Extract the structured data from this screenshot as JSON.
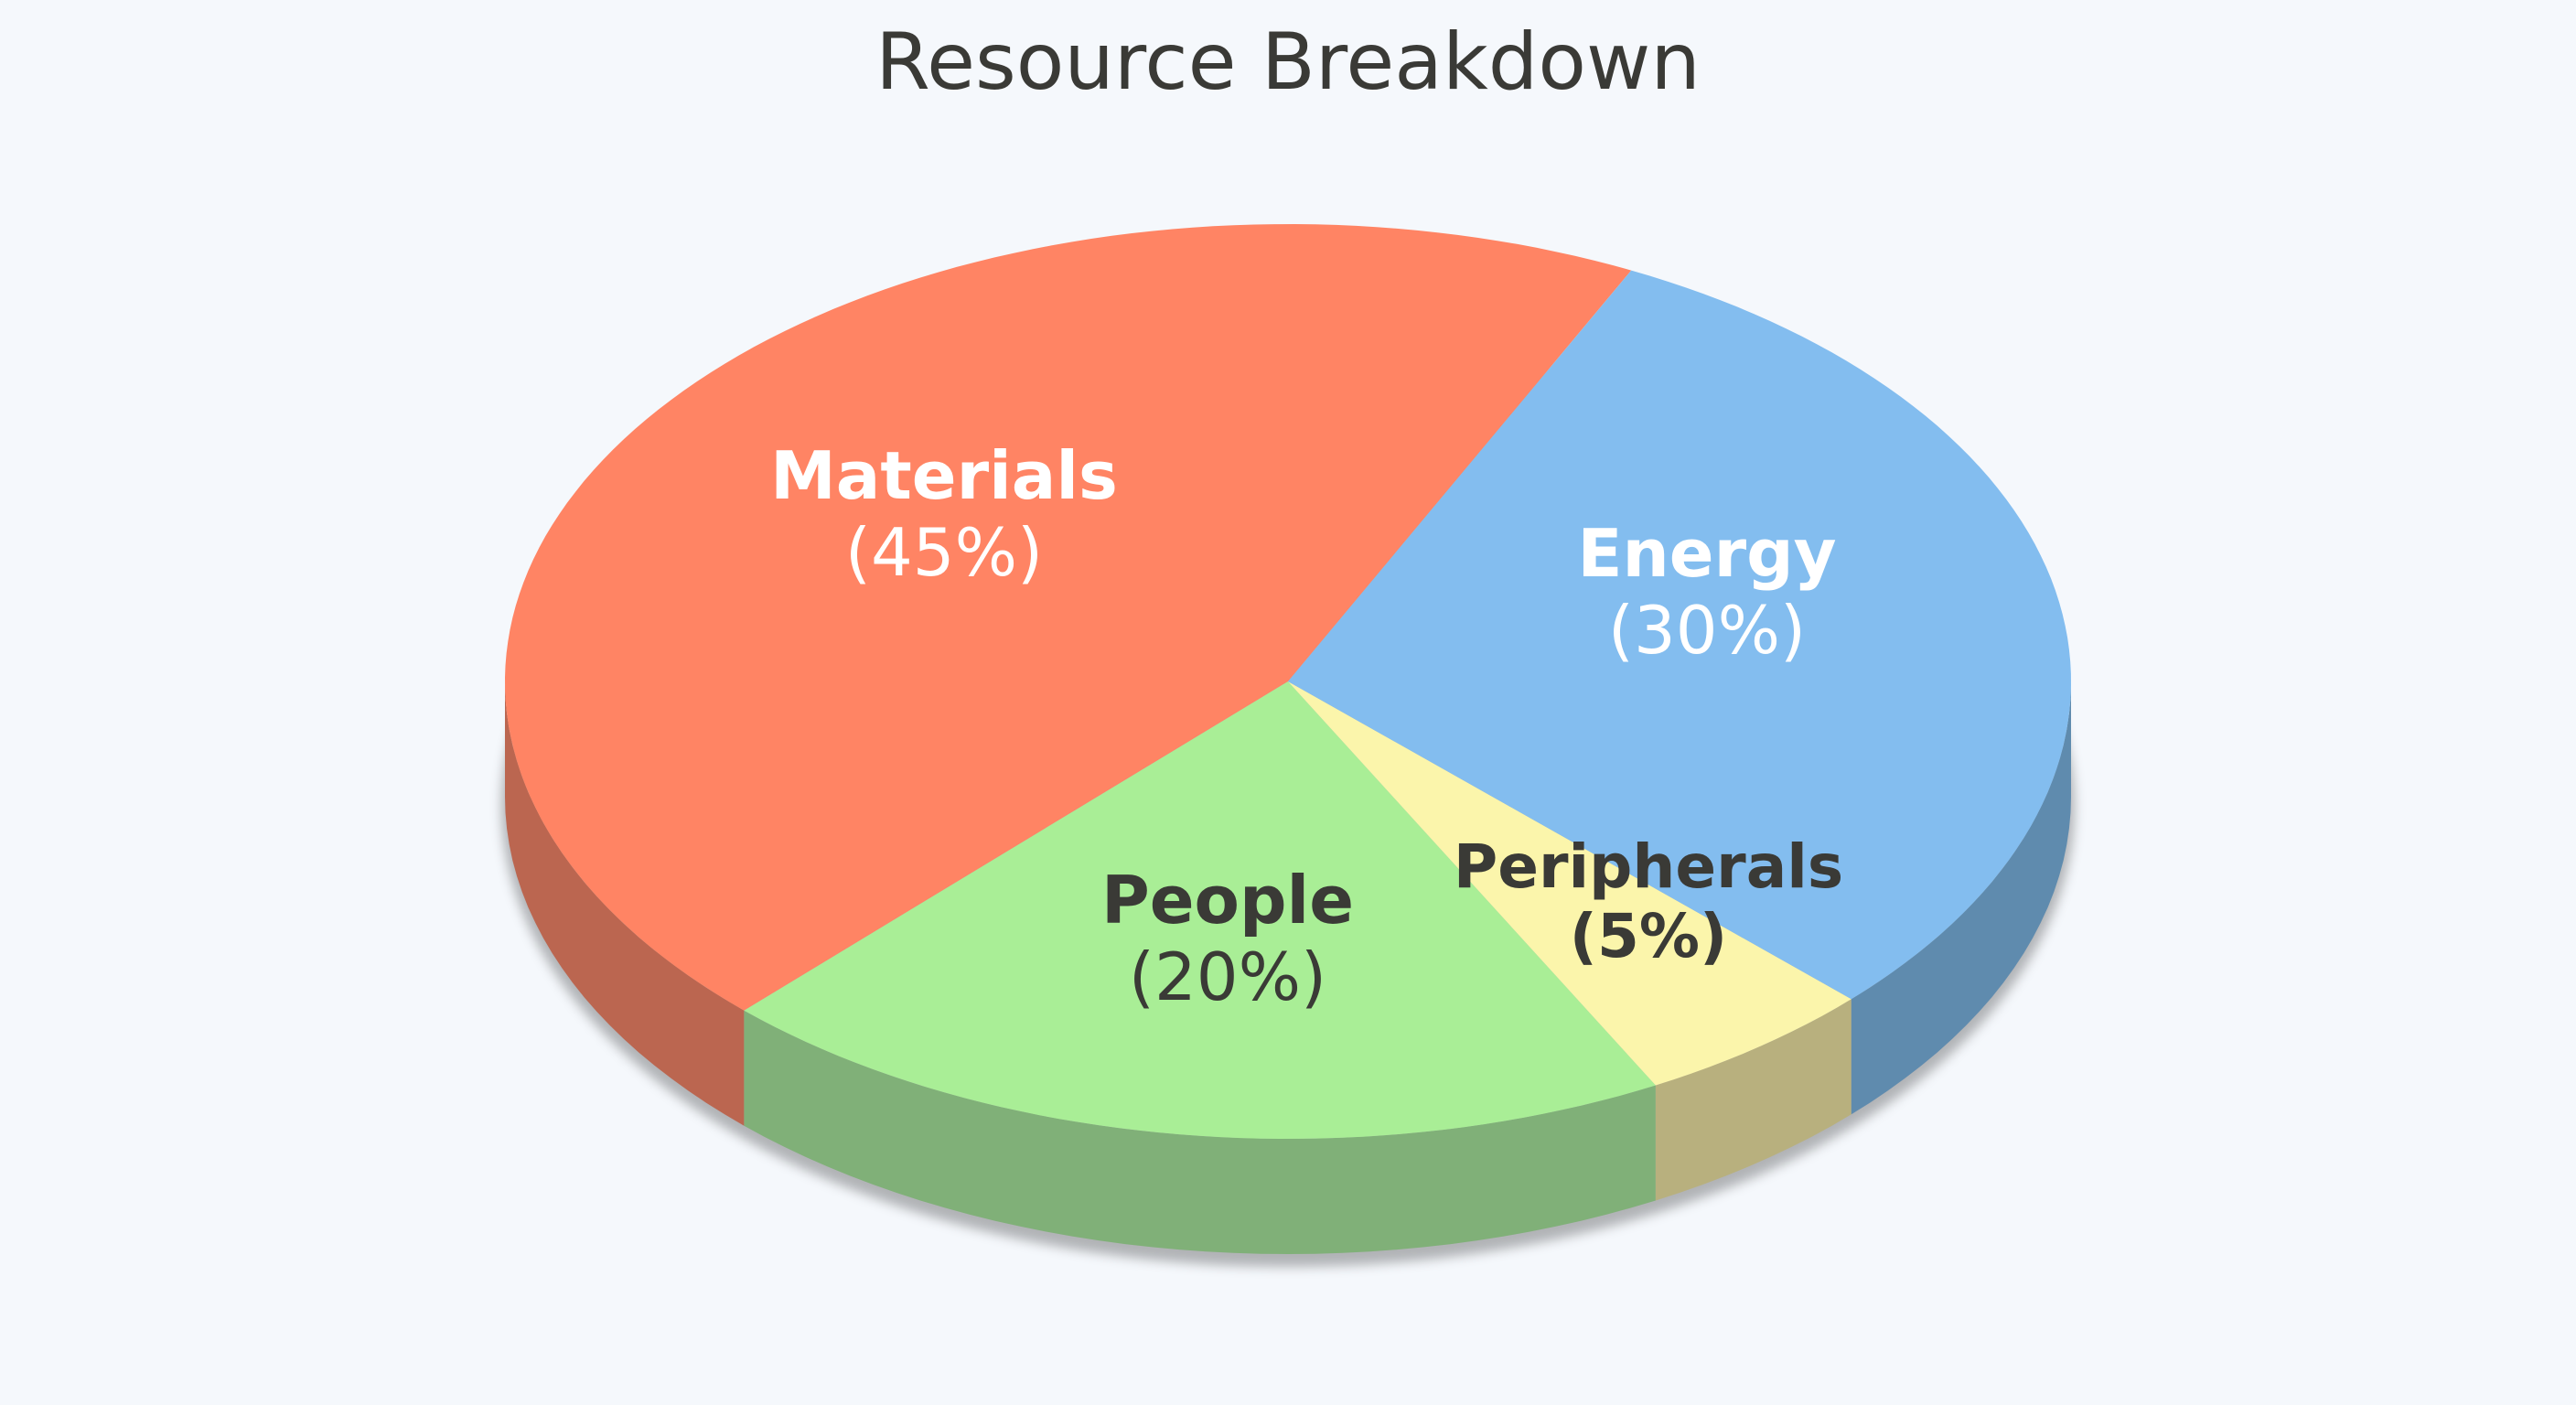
{
  "chart_data": {
    "type": "pie",
    "title": "Resource Breakdown",
    "slices": [
      {
        "name": "Materials",
        "value": 45,
        "value_label": "(45%)",
        "color": "#ff8464",
        "side_color": "#bb6650",
        "label_color": "#ffffff"
      },
      {
        "name": "People",
        "value": 20,
        "value_label": "(20%)",
        "color": "#a9ee96",
        "side_color": "#80b078",
        "label_color": "#3a3a36"
      },
      {
        "name": "Peripherals",
        "value": 5,
        "value_label": "(5%)",
        "color": "#fbf5ab",
        "side_color": "#b8b07e",
        "label_color": "#3a3a36"
      },
      {
        "name": "Energy",
        "value": 30,
        "value_label": "(30%)",
        "color": "#83bdef",
        "side_color": "#5f8bae",
        "label_color": "#ffffff"
      }
    ],
    "style": "3d"
  }
}
